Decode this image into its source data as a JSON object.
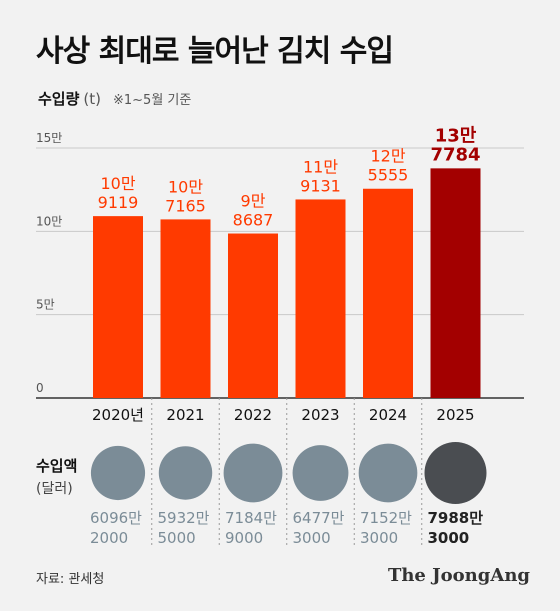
{
  "title": "사상 최대로 늘어난 김치 수입",
  "subtitle": {
    "label": "수입량",
    "unit": "(t)",
    "note": "※1~5월 기준"
  },
  "chart_data": {
    "type": "bar",
    "categories": [
      "2020년",
      "2021",
      "2022",
      "2023",
      "2024",
      "2025"
    ],
    "values": [
      109119,
      107165,
      98687,
      119131,
      125555,
      137784
    ],
    "value_labels": [
      [
        "10만",
        "9119"
      ],
      [
        "10만",
        "7165"
      ],
      [
        "9만",
        "8687"
      ],
      [
        "11만",
        "9131"
      ],
      [
        "12만",
        "5555"
      ],
      [
        "13만",
        "7784"
      ]
    ],
    "ylim": [
      0,
      150000
    ],
    "yticks": [
      0,
      50000,
      100000,
      150000
    ],
    "ytick_labels": [
      "0",
      "5만",
      "10만",
      "15만"
    ],
    "bar_color": "#ff3a00",
    "highlight_color": "#a30000",
    "highlight_index": 5,
    "grid": true
  },
  "import_value": {
    "label": "수입액",
    "unit": "(달러)",
    "values_usd": [
      60962000,
      59325000,
      71849000,
      64773000,
      71523000,
      79883000
    ],
    "labels": [
      [
        "6096만",
        "2000"
      ],
      [
        "5932만",
        "5000"
      ],
      [
        "7184만",
        "9000"
      ],
      [
        "6477만",
        "3000"
      ],
      [
        "7152만",
        "3000"
      ],
      [
        "7988만",
        "3000"
      ]
    ],
    "circle_color": "#7b8c97",
    "highlight_color": "#4a4d51"
  },
  "source": "자료: 관세청",
  "logo": "The JoongAng"
}
